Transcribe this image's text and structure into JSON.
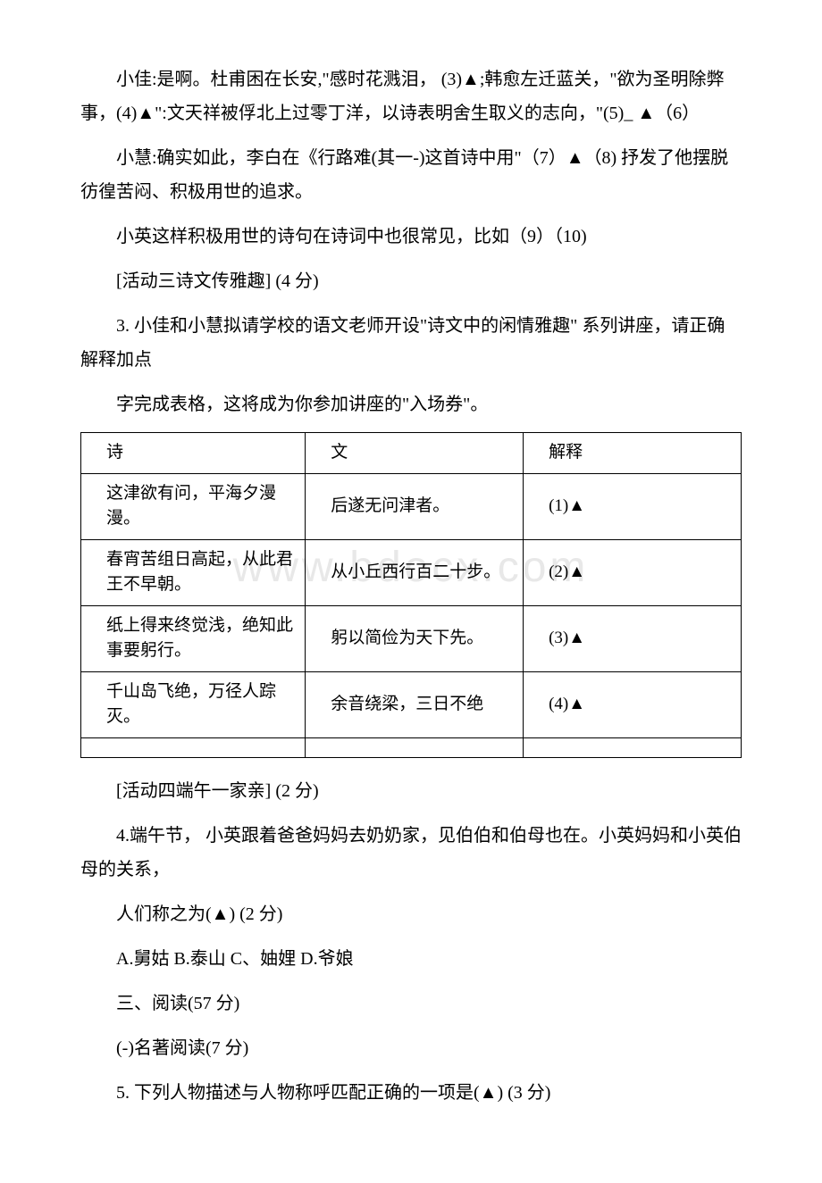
{
  "watermark": "www.bdocx.com",
  "p1": "小佳:是啊。杜甫困在长安,\"感时花溅泪，  (3)▲;韩愈左迁蓝关，\"欲为圣明除弊事，(4)▲\":文天祥被俘北上过零丁洋，以诗表明舍生取义的志向，\"(5)_  ▲（6）",
  "p2": "小慧:确实如此，李白在《行路难(其一-)这首诗中用\"（7）▲（8) 抒发了他摆脱彷徨苦闷、积极用世的追求。",
  "p3": "小英这样积极用世的诗句在诗词中也很常见，比如（9）（10)",
  "p4": "[活动三诗文传雅趣] (4 分)",
  "p5": "3. 小佳和小慧拟请学校的语文老师开设\"诗文中的闲情雅趣\" 系列讲座，请正确解释加点",
  "p6": "字完成表格，这将成为你参加讲座的\"入场券\"。",
  "table": {
    "header": {
      "c1": "诗",
      "c2": "文",
      "c3": "解释"
    },
    "rows": [
      {
        "c1": "这津欲有问，平海夕漫漫。",
        "c2": "后遂无问津者。",
        "c3": "(1)▲"
      },
      {
        "c1": "春宵苦组日高起，从此君王不早朝。",
        "c2": "从小丘西行百二十步。",
        "c3": "(2)▲"
      },
      {
        "c1": "纸上得来终觉浅，绝知此事要躬行。",
        "c2": "躬以简俭为天下先。",
        "c3": "(3)▲"
      },
      {
        "c1": "千山岛飞绝，万径人踪灭。",
        "c2": "余音绕梁，三日不绝",
        "c3": "(4)▲"
      }
    ]
  },
  "p7": "[活动四端午一家亲] (2 分)",
  "p8": "4.端午节， 小英跟着爸爸妈妈去奶奶家，见伯伯和伯母也在。小英妈妈和小英伯母的关系，",
  "p9": "人们称之为(▲) (2 分)",
  "p10": "A.舅姑 B.泰山 C、妯娌 D.爷娘",
  "p11": "三、阅读(57 分)",
  "p12": "(-)名著阅读(7 分)",
  "p13": "5. 下列人物描述与人物称呼匹配正确的一项是(▲) (3 分)"
}
